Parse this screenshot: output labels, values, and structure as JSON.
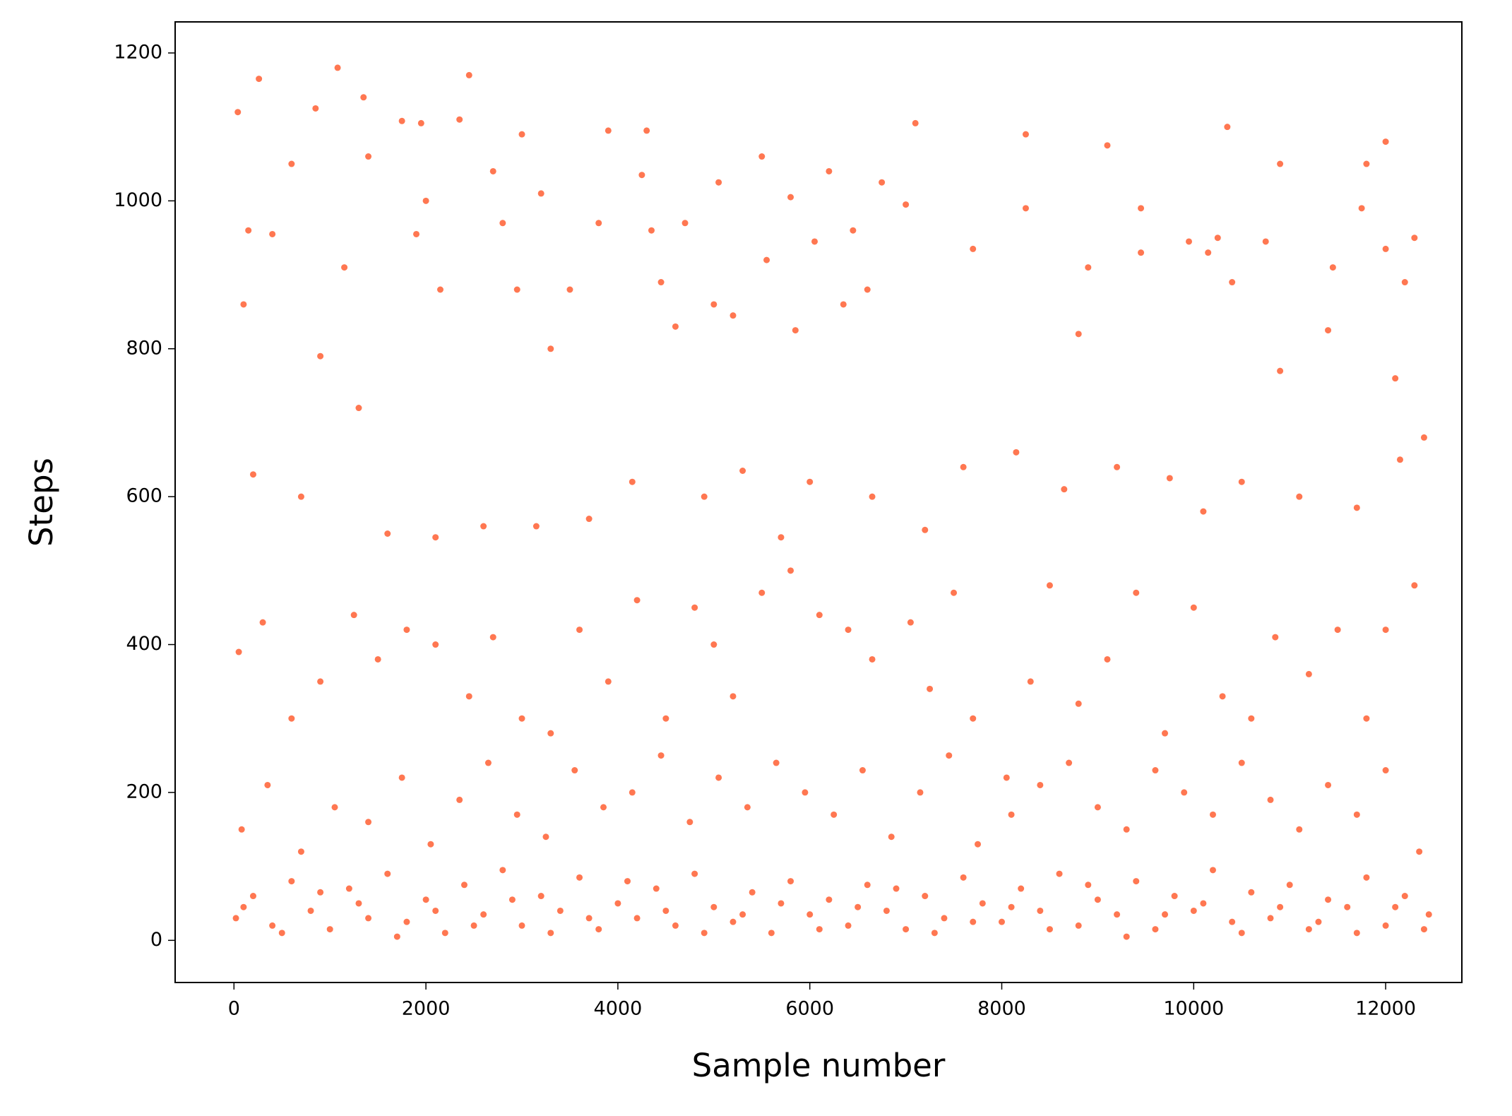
{
  "chart_data": {
    "type": "scatter",
    "xlabel": "Sample number",
    "ylabel": "Steps",
    "color": "#ff5f33",
    "xlim": [
      -613,
      12794
    ],
    "ylim": [
      -57,
      1242
    ],
    "xticks": [
      0,
      2000,
      4000,
      6000,
      8000,
      10000,
      12000
    ],
    "yticks": [
      0,
      200,
      400,
      600,
      800,
      1000,
      1200
    ],
    "x": [
      40,
      260,
      1080,
      2450,
      1350,
      850,
      1750,
      2350,
      1950,
      3000,
      3900,
      4300,
      7100,
      8250,
      10350,
      9100,
      12000,
      5500,
      11800,
      10900,
      6750,
      5050,
      2700,
      6200,
      1400,
      600,
      3200,
      4250,
      5800,
      7000,
      9450,
      8250,
      11750,
      2000,
      150,
      400,
      1900,
      2800,
      3800,
      4700,
      6050,
      6450,
      9950,
      10250,
      10750,
      12300,
      12000,
      4350,
      1150,
      8900,
      9450,
      10150,
      11450,
      2150,
      3500,
      5550,
      6600,
      7700,
      4450,
      12200,
      900,
      100,
      1300,
      2950,
      3300,
      4600,
      5000,
      5200,
      5850,
      6350,
      8800,
      10400,
      10900,
      11400,
      12100,
      200,
      700,
      1600,
      2100,
      2600,
      3150,
      3700,
      4150,
      4900,
      5300,
      5700,
      6000,
      6650,
      7200,
      7600,
      8150,
      8650,
      9200,
      9750,
      10100,
      10500,
      11100,
      11700,
      12150,
      12400,
      50,
      300,
      600,
      900,
      1250,
      1500,
      1800,
      2100,
      2450,
      2700,
      3000,
      3300,
      3600,
      3900,
      4200,
      4500,
      4800,
      5000,
      5200,
      5500,
      5800,
      6100,
      6400,
      6650,
      7050,
      7250,
      7500,
      7700,
      8050,
      8300,
      8500,
      8800,
      9100,
      9400,
      9700,
      10000,
      10300,
      10600,
      10850,
      11200,
      11500,
      11800,
      12000,
      12300,
      80,
      350,
      700,
      1050,
      1400,
      1750,
      2050,
      2350,
      2650,
      2950,
      3250,
      3550,
      3850,
      4150,
      4450,
      4750,
      5050,
      5350,
      5650,
      5950,
      6250,
      6550,
      6850,
      7150,
      7450,
      7750,
      8100,
      8400,
      8700,
      9000,
      9300,
      9600,
      9900,
      10200,
      10500,
      10800,
      11100,
      11400,
      11700,
      12000,
      12350,
      20,
      200,
      400,
      600,
      800,
      1000,
      1200,
      1400,
      1600,
      1800,
      2000,
      2200,
      2400,
      2600,
      2800,
      3000,
      3200,
      3400,
      3600,
      3800,
      4000,
      4200,
      4400,
      4600,
      4800,
      5000,
      5200,
      5400,
      5600,
      5800,
      6000,
      6200,
      6400,
      6600,
      6800,
      7000,
      7200,
      7400,
      7600,
      7800,
      8000,
      8200,
      8400,
      8600,
      8800,
      9000,
      9200,
      9400,
      9600,
      9800,
      10000,
      10200,
      10400,
      10600,
      10800,
      11000,
      11200,
      11400,
      11600,
      11800,
      12000,
      12200,
      12450,
      100,
      500,
      900,
      1300,
      1700,
      2100,
      2500,
      2900,
      3300,
      3700,
      4100,
      4500,
      4900,
      5300,
      5700,
      6100,
      6500,
      6900,
      7300,
      7700,
      8100,
      8500,
      8900,
      9300,
      9700,
      10100,
      10500,
      10900,
      11300,
      11700,
      12100,
      12400
    ],
    "values": [
      1120,
      1165,
      1180,
      1170,
      1140,
      1125,
      1108,
      1110,
      1105,
      1090,
      1095,
      1095,
      1105,
      1090,
      1100,
      1075,
      1080,
      1060,
      1050,
      1050,
      1025,
      1025,
      1040,
      1040,
      1060,
      1050,
      1010,
      1035,
      1005,
      995,
      990,
      990,
      990,
      1000,
      960,
      955,
      955,
      970,
      970,
      970,
      945,
      960,
      945,
      950,
      945,
      950,
      935,
      960,
      910,
      910,
      930,
      930,
      910,
      880,
      880,
      920,
      880,
      935,
      890,
      890,
      790,
      860,
      720,
      880,
      800,
      830,
      860,
      845,
      825,
      860,
      820,
      890,
      770,
      825,
      760,
      630,
      600,
      550,
      545,
      560,
      560,
      570,
      620,
      600,
      635,
      545,
      620,
      600,
      555,
      640,
      660,
      610,
      640,
      625,
      580,
      620,
      600,
      585,
      650,
      680,
      390,
      430,
      300,
      350,
      440,
      380,
      420,
      400,
      330,
      410,
      300,
      280,
      420,
      350,
      460,
      300,
      450,
      400,
      330,
      470,
      500,
      440,
      420,
      380,
      430,
      340,
      470,
      300,
      220,
      350,
      480,
      320,
      380,
      470,
      280,
      450,
      330,
      300,
      410,
      360,
      420,
      300,
      420,
      480,
      150,
      210,
      120,
      180,
      160,
      220,
      130,
      190,
      240,
      170,
      140,
      230,
      180,
      200,
      250,
      160,
      220,
      180,
      240,
      200,
      170,
      230,
      140,
      200,
      250,
      130,
      170,
      210,
      240,
      180,
      150,
      230,
      200,
      170,
      240,
      190,
      150,
      210,
      170,
      230,
      120,
      30,
      60,
      20,
      80,
      40,
      15,
      70,
      30,
      90,
      25,
      55,
      10,
      75,
      35,
      95,
      20,
      60,
      40,
      85,
      15,
      50,
      30,
      70,
      20,
      90,
      45,
      25,
      65,
      10,
      80,
      35,
      55,
      20,
      75,
      40,
      15,
      60,
      30,
      85,
      50,
      25,
      70,
      40,
      90,
      20,
      55,
      35,
      80,
      15,
      60,
      40,
      95,
      25,
      65,
      30,
      75,
      15,
      55,
      45,
      85,
      20,
      60,
      35,
      45,
      10,
      65,
      50,
      5,
      40,
      20,
      55,
      10,
      30,
      80,
      40,
      10,
      35,
      50,
      15,
      45,
      70,
      10,
      25,
      45,
      15,
      75,
      5,
      35,
      50,
      10,
      45,
      25,
      10,
      45,
      15
    ]
  }
}
